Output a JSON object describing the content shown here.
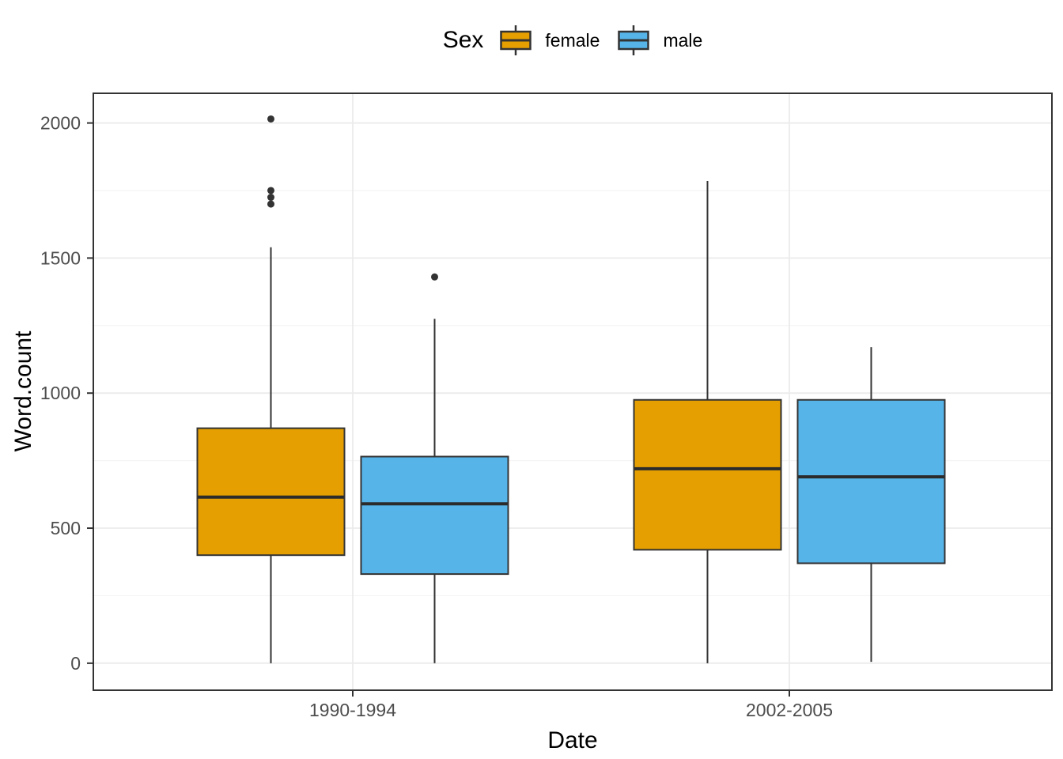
{
  "chart_data": {
    "type": "boxplot",
    "title": "",
    "xlabel": "Date",
    "ylabel": "Word.count",
    "categories": [
      "1990-1994",
      "2002-2005"
    ],
    "y_ticks": [
      0,
      500,
      1000,
      1500,
      2000
    ],
    "y_minor_ticks": [
      250,
      750,
      1250,
      1750
    ],
    "ylim": [
      -100,
      2110
    ],
    "grid": true,
    "legend": {
      "title": "Sex",
      "position": "top",
      "entries": [
        {
          "label": "female",
          "color": "#E69F00"
        },
        {
          "label": "male",
          "color": "#56B4E9"
        }
      ]
    },
    "series": [
      {
        "name": "female",
        "color": "#E69F00",
        "boxes": [
          {
            "category": "1990-1994",
            "whisker_low": 0,
            "q1": 400,
            "median": 615,
            "q3": 870,
            "whisker_high": 1540,
            "outliers": [
              1700,
              1725,
              1750,
              2015
            ]
          },
          {
            "category": "2002-2005",
            "whisker_low": 0,
            "q1": 420,
            "median": 720,
            "q3": 975,
            "whisker_high": 1785,
            "outliers": []
          }
        ]
      },
      {
        "name": "male",
        "color": "#56B4E9",
        "boxes": [
          {
            "category": "1990-1994",
            "whisker_low": 0,
            "q1": 330,
            "median": 590,
            "q3": 765,
            "whisker_high": 1275,
            "outliers": [
              1430
            ]
          },
          {
            "category": "2002-2005",
            "whisker_low": 5,
            "q1": 370,
            "median": 690,
            "q3": 975,
            "whisker_high": 1170,
            "outliers": []
          }
        ]
      }
    ],
    "style": {
      "box_border": "#333333",
      "median_color": "#2B2B2B",
      "whisker_color": "#333333",
      "outlier_color": "#333333",
      "grid_major": "#EBEBEB",
      "grid_minor": "#F4F4F4",
      "panel_border": "#333333",
      "panel_background": "#FFFFFF",
      "tick_color": "#333333",
      "tick_label_color": "#4D4D4D"
    }
  }
}
